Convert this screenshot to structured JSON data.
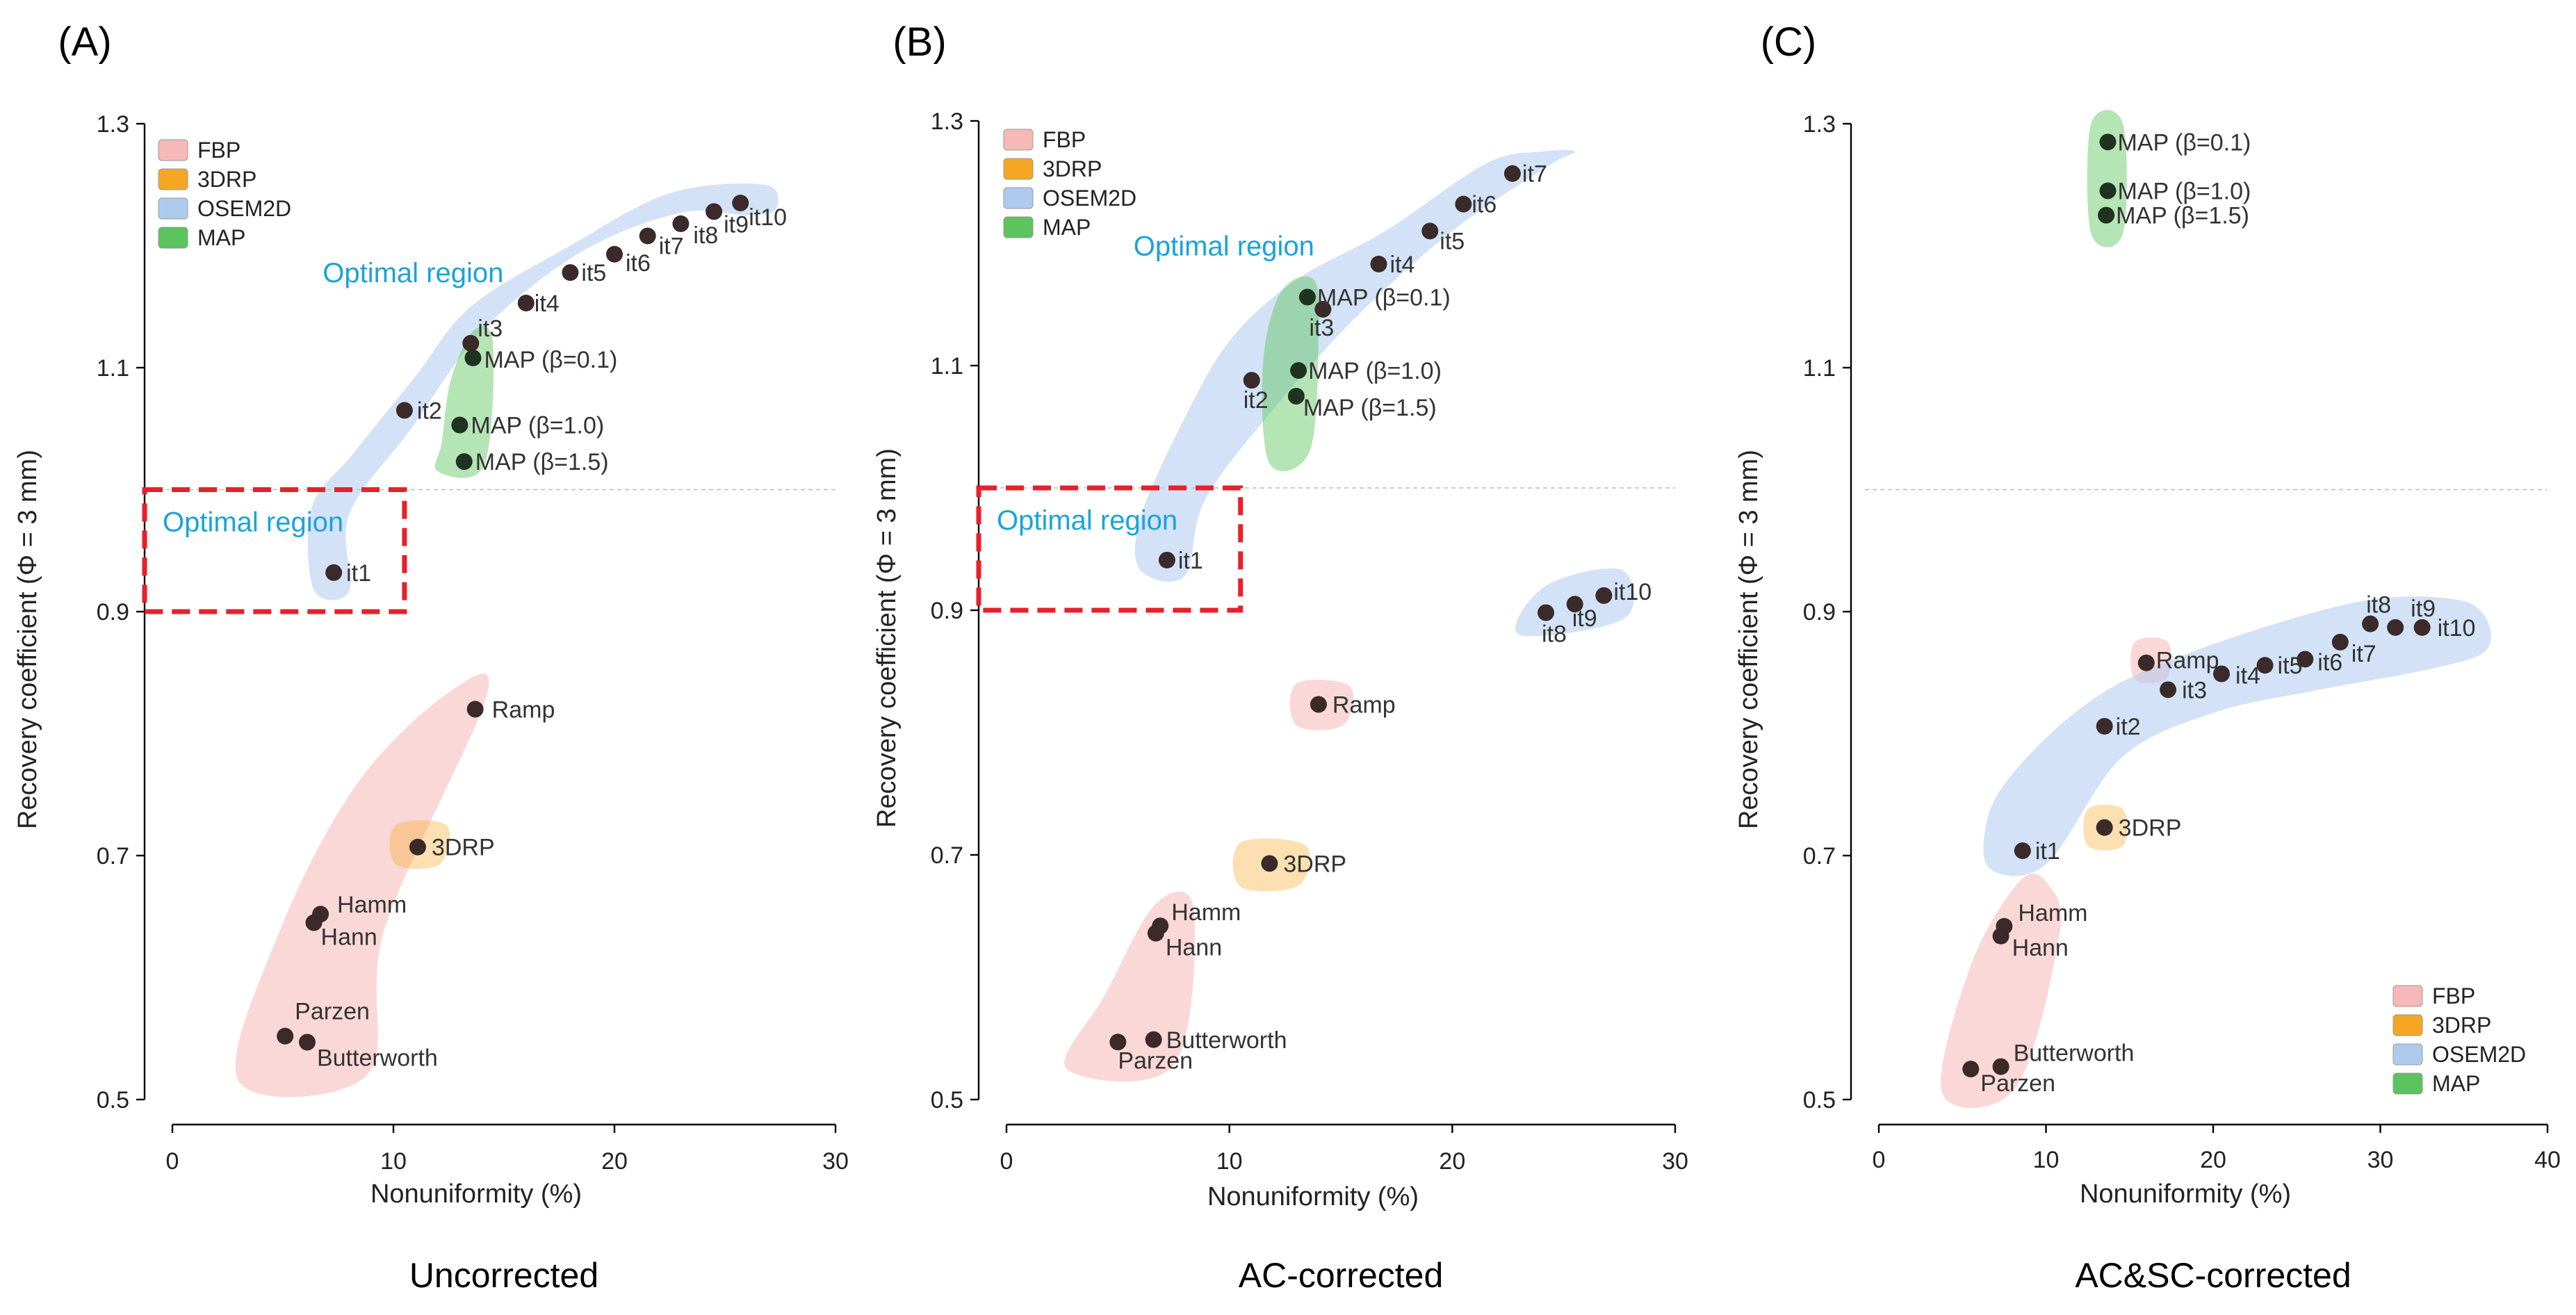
{
  "colors": {
    "FBP": "#f7b8b8",
    "3DRP": "#f5a623",
    "OSEM2D": "#aecbee",
    "MAP": "#5cc45c",
    "point": "#3a2a2a",
    "optimal_box": "#e8202a",
    "optimal_text": "#1aa3d9"
  },
  "chart_data": [
    {
      "type": "scatter",
      "panel": "(A)",
      "caption": "Uncorrected",
      "xlabel": "Nonuniformity (%)",
      "ylabel": "Recovery coefficient (Φ = 3 mm)",
      "xlim": [
        0,
        30
      ],
      "ylim": [
        0.5,
        1.3
      ],
      "xticks": [
        0,
        10,
        20,
        30
      ],
      "yticks": [
        0.5,
        0.7,
        0.9,
        1.1,
        1.3
      ],
      "reference_y": 1.0,
      "legend_position": "top-left",
      "legend": [
        "FBP",
        "3DRP",
        "OSEM2D",
        "MAP"
      ],
      "optimal_region": {
        "x": [
          0,
          10.5
        ],
        "y": [
          0.9,
          1.0
        ],
        "label": "Optimal region"
      },
      "region_labels": [
        {
          "text": "Optimal region",
          "x": 6.8,
          "y": 1.17
        }
      ],
      "series": [
        {
          "name": "FBP",
          "points": [
            {
              "label": "Ramp",
              "x": 13.7,
              "y": 0.82
            },
            {
              "label": "Hamm",
              "x": 6.7,
              "y": 0.652
            },
            {
              "label": "Hann",
              "x": 6.4,
              "y": 0.645
            },
            {
              "label": "Parzen",
              "x": 5.1,
              "y": 0.552
            },
            {
              "label": "Butterworth",
              "x": 6.1,
              "y": 0.547
            }
          ]
        },
        {
          "name": "3DRP",
          "points": [
            {
              "label": "3DRP",
              "x": 11.1,
              "y": 0.707
            }
          ]
        },
        {
          "name": "OSEM2D",
          "points": [
            {
              "label": "it1",
              "x": 7.3,
              "y": 0.932
            },
            {
              "label": "it2",
              "x": 10.5,
              "y": 1.065
            },
            {
              "label": "it3",
              "x": 13.5,
              "y": 1.12
            },
            {
              "label": "it4",
              "x": 16.0,
              "y": 1.153
            },
            {
              "label": "it5",
              "x": 18.0,
              "y": 1.178
            },
            {
              "label": "it6",
              "x": 20.0,
              "y": 1.193
            },
            {
              "label": "it7",
              "x": 21.5,
              "y": 1.208
            },
            {
              "label": "it8",
              "x": 23.0,
              "y": 1.218
            },
            {
              "label": "it9",
              "x": 24.5,
              "y": 1.228
            },
            {
              "label": "it10",
              "x": 25.7,
              "y": 1.235
            }
          ]
        },
        {
          "name": "MAP",
          "points": [
            {
              "label": "MAP (β=0.1)",
              "x": 13.6,
              "y": 1.108
            },
            {
              "label": "MAP (β=1.0)",
              "x": 13.0,
              "y": 1.053
            },
            {
              "label": "MAP (β=1.5)",
              "x": 13.2,
              "y": 1.023
            }
          ]
        }
      ]
    },
    {
      "type": "scatter",
      "panel": "(B)",
      "caption": "AC-corrected",
      "xlabel": "Nonuniformity (%)",
      "ylabel": "Recovery coefficient (Φ = 3 mm)",
      "xlim": [
        0,
        30
      ],
      "ylim": [
        0.5,
        1.3
      ],
      "xticks": [
        0,
        10,
        20,
        30
      ],
      "yticks": [
        0.5,
        0.7,
        0.9,
        1.1,
        1.3
      ],
      "reference_y": 1.0,
      "legend_position": "top-left",
      "legend": [
        "FBP",
        "3DRP",
        "OSEM2D",
        "MAP"
      ],
      "optimal_region": {
        "x": [
          0,
          10.5
        ],
        "y": [
          0.9,
          1.0
        ],
        "label": "Optimal region"
      },
      "region_labels": [
        {
          "text": "Optimal region",
          "x": 5.7,
          "y": 1.19
        }
      ],
      "series": [
        {
          "name": "FBP",
          "points": [
            {
              "label": "Ramp",
              "x": 14.0,
              "y": 0.823
            },
            {
              "label": "Hamm",
              "x": 6.9,
              "y": 0.642
            },
            {
              "label": "Hann",
              "x": 6.7,
              "y": 0.636
            },
            {
              "label": "Parzen",
              "x": 5.0,
              "y": 0.547
            },
            {
              "label": "Butterworth",
              "x": 6.6,
              "y": 0.549
            }
          ]
        },
        {
          "name": "3DRP",
          "points": [
            {
              "label": "3DRP",
              "x": 11.8,
              "y": 0.693
            }
          ]
        },
        {
          "name": "OSEM2D",
          "points": [
            {
              "label": "it1",
              "x": 7.2,
              "y": 0.941
            },
            {
              "label": "it2",
              "x": 11.0,
              "y": 1.088
            },
            {
              "label": "it3",
              "x": 14.2,
              "y": 1.146
            },
            {
              "label": "it4",
              "x": 16.7,
              "y": 1.183
            },
            {
              "label": "it5",
              "x": 19.0,
              "y": 1.21
            },
            {
              "label": "it6",
              "x": 20.5,
              "y": 1.232
            },
            {
              "label": "it7",
              "x": 22.7,
              "y": 1.257
            },
            {
              "label": "it8",
              "x": 24.2,
              "y": 0.898
            },
            {
              "label": "it9",
              "x": 25.5,
              "y": 0.905
            },
            {
              "label": "it10",
              "x": 26.8,
              "y": 0.912
            }
          ]
        },
        {
          "name": "MAP",
          "points": [
            {
              "label": "MAP (β=0.1)",
              "x": 13.5,
              "y": 1.156
            },
            {
              "label": "MAP (β=1.0)",
              "x": 13.1,
              "y": 1.096
            },
            {
              "label": "MAP (β=1.5)",
              "x": 13.0,
              "y": 1.075
            }
          ]
        }
      ]
    },
    {
      "type": "scatter",
      "panel": "(C)",
      "caption": "AC&SC-corrected",
      "xlabel": "Nonuniformity (%)",
      "ylabel": "Recovery coefficient (Φ = 3 mm)",
      "xlim": [
        0,
        40
      ],
      "ylim": [
        0.5,
        1.3
      ],
      "xticks": [
        0,
        10,
        20,
        30,
        40
      ],
      "yticks": [
        0.5,
        0.7,
        0.9,
        1.1,
        1.3
      ],
      "reference_y": 1.0,
      "legend_position": "bottom-right",
      "legend": [
        "FBP",
        "3DRP",
        "OSEM2D",
        "MAP"
      ],
      "series": [
        {
          "name": "FBP",
          "points": [
            {
              "label": "Ramp",
              "x": 16.0,
              "y": 0.858
            },
            {
              "label": "Hamm",
              "x": 7.5,
              "y": 0.642
            },
            {
              "label": "Hann",
              "x": 7.3,
              "y": 0.634
            },
            {
              "label": "Parzen",
              "x": 5.5,
              "y": 0.525
            },
            {
              "label": "Butterworth",
              "x": 7.3,
              "y": 0.527
            }
          ]
        },
        {
          "name": "3DRP",
          "points": [
            {
              "label": "3DRP",
              "x": 13.5,
              "y": 0.723
            }
          ]
        },
        {
          "name": "OSEM2D",
          "points": [
            {
              "label": "it1",
              "x": 8.6,
              "y": 0.704
            },
            {
              "label": "it2",
              "x": 13.5,
              "y": 0.806
            },
            {
              "label": "it3",
              "x": 17.3,
              "y": 0.836
            },
            {
              "label": "it4",
              "x": 20.5,
              "y": 0.849
            },
            {
              "label": "it5",
              "x": 23.1,
              "y": 0.856
            },
            {
              "label": "it6",
              "x": 25.5,
              "y": 0.861
            },
            {
              "label": "it7",
              "x": 27.6,
              "y": 0.875
            },
            {
              "label": "it8",
              "x": 29.4,
              "y": 0.89
            },
            {
              "label": "it9",
              "x": 30.9,
              "y": 0.887
            },
            {
              "label": "it10",
              "x": 32.5,
              "y": 0.887
            }
          ]
        },
        {
          "name": "MAP",
          "points": [
            {
              "label": "MAP (β=0.1)",
              "x": 13.7,
              "y": 1.285
            },
            {
              "label": "MAP (β=1.0)",
              "x": 13.7,
              "y": 1.245
            },
            {
              "label": "MAP (β=1.5)",
              "x": 13.6,
              "y": 1.225
            }
          ]
        }
      ]
    }
  ]
}
